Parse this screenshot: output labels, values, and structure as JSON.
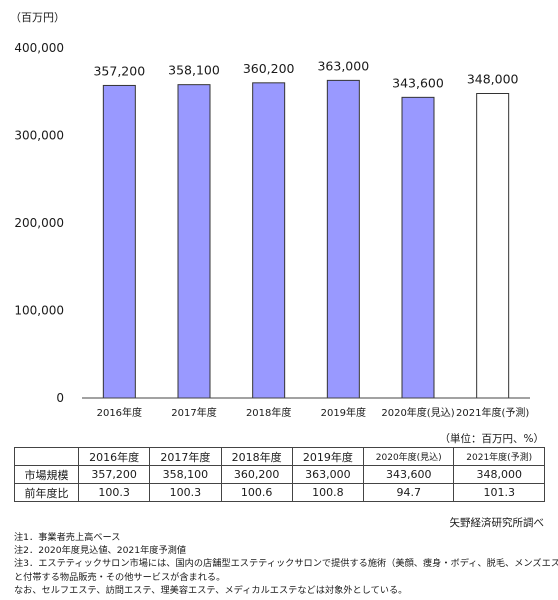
{
  "chart_data": {
    "type": "bar",
    "unit_label": "（百万円）",
    "categories": [
      "2016年度",
      "2017年度",
      "2018年度",
      "2019年度",
      "2020年度(見込)",
      "2021年度(予測)"
    ],
    "values": [
      357200,
      358100,
      360200,
      363000,
      343600,
      348000
    ],
    "value_labels": [
      "357,200",
      "358,100",
      "360,200",
      "363,000",
      "343,600",
      "348,000"
    ],
    "forecast_index": 5,
    "ylim": [
      0,
      400000
    ],
    "yticks": [
      0,
      100000,
      200000,
      300000,
      400000
    ],
    "ytick_labels": [
      "0",
      "100,000",
      "200,000",
      "300,000",
      "400,000"
    ],
    "bar_color": "#9999ff",
    "forecast_color": "#ffffff",
    "grid": false
  },
  "table": {
    "unit_note": "（単位：百万円、%）",
    "headers": [
      "2016年度",
      "2017年度",
      "2018年度",
      "2019年度",
      "2020年度(見込)",
      "2021年度(予測)"
    ],
    "rows": [
      {
        "label": "市場規模",
        "values": [
          "357,200",
          "358,100",
          "360,200",
          "363,000",
          "343,600",
          "348,000"
        ]
      },
      {
        "label": "前年度比",
        "values": [
          "100.3",
          "100.3",
          "100.6",
          "100.8",
          "94.7",
          "101.3"
        ]
      }
    ]
  },
  "source": "矢野経済研究所調べ",
  "notes": [
    "注1．事業者売上高ベース",
    "注2．2020年度見込値、2021年度予測値",
    "注3．エステティックサロン市場には、国内の店舗型エステティックサロンで提供する施術（美顔、痩身・ボディ、脱毛、メンズエステ）",
    "と付帯する物品販売・その他サービスが含まれる。",
    "なお、セルフエステ、訪問エステ、理美容エステ、メディカルエステなどは対象外としている。"
  ]
}
